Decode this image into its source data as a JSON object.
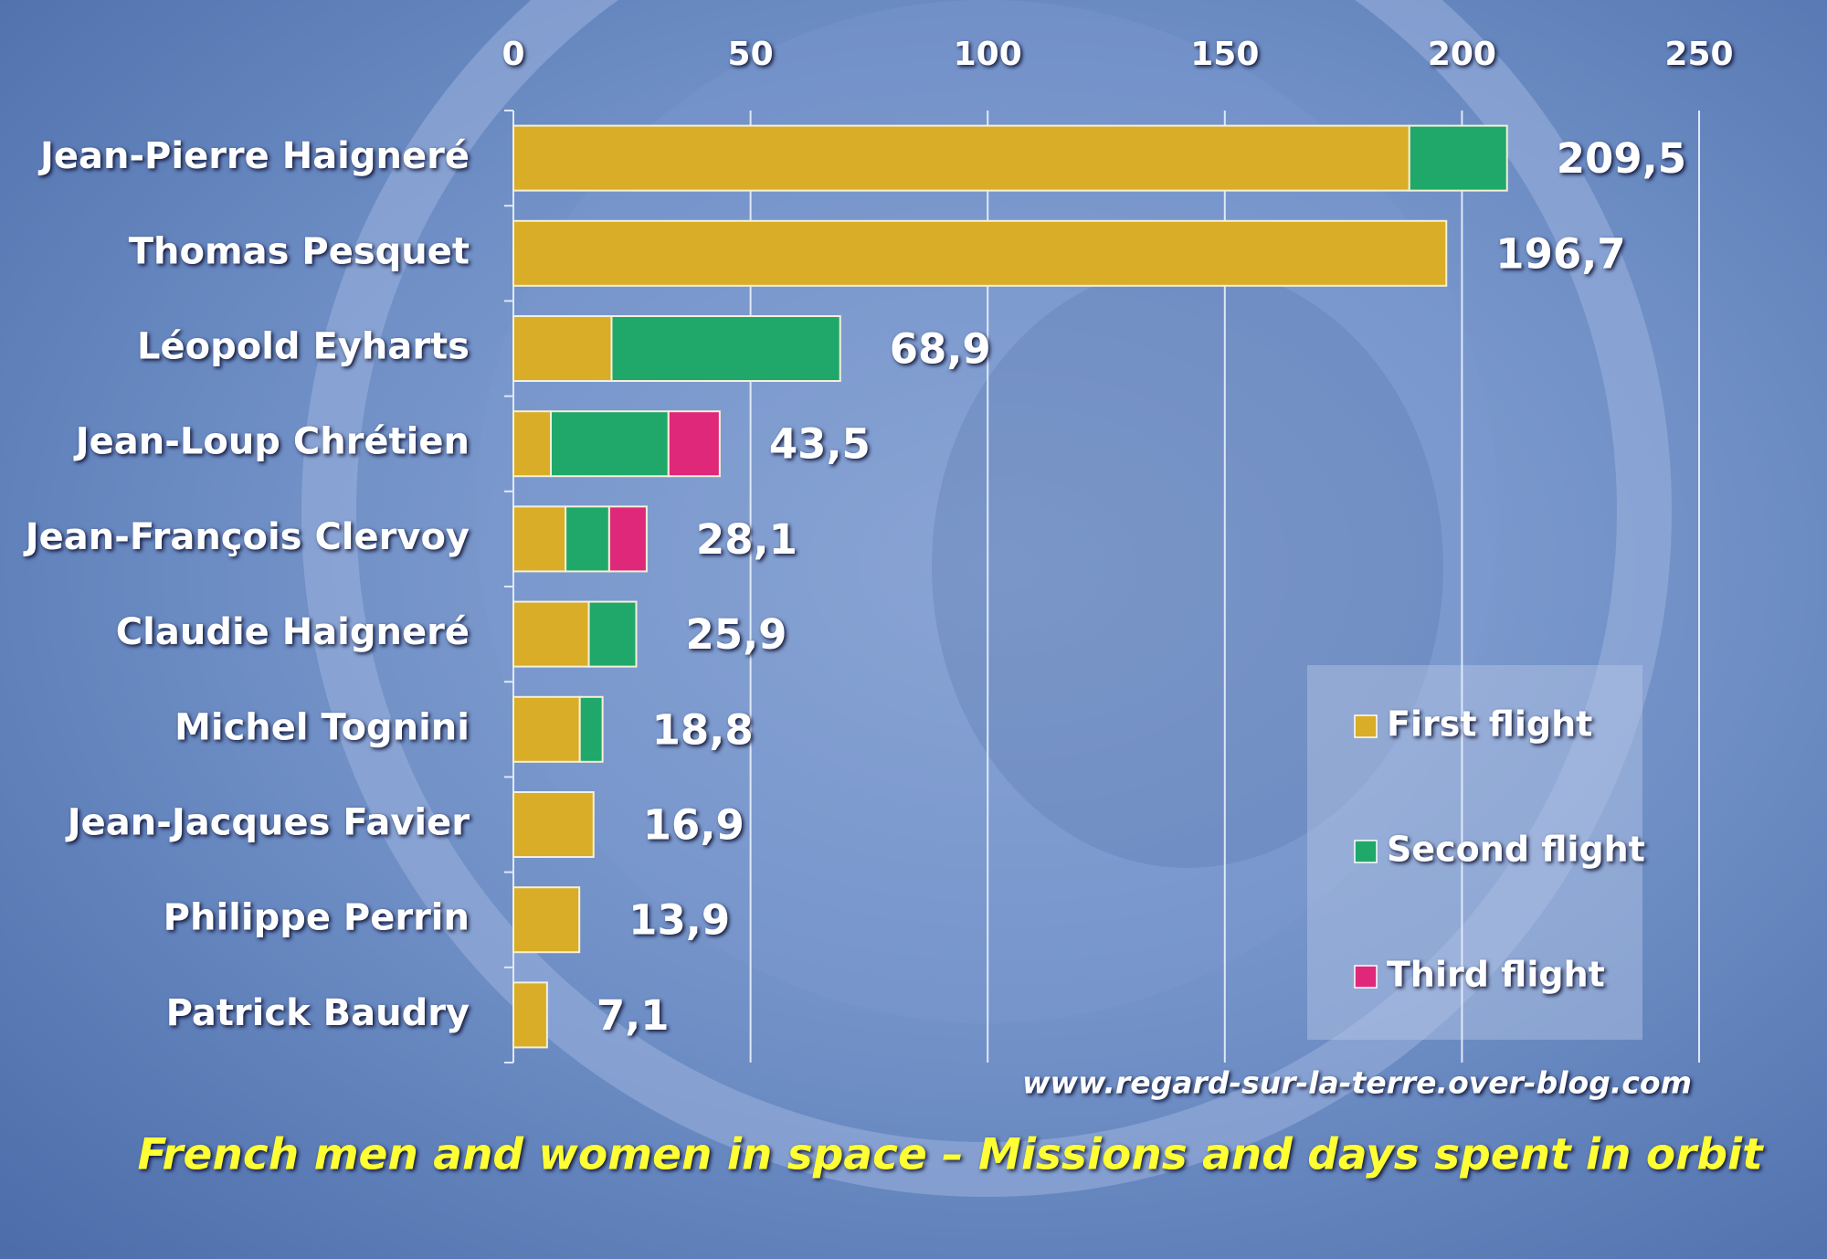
{
  "chart_data": {
    "type": "stacked-bar-horizontal",
    "title": "French men and women in space – Missions and days spent in orbit",
    "source": "www.regard-sur-la-terre.over-blog.com",
    "categories": [
      "Jean-Pierre Haigneré",
      "Thomas Pesquet",
      "Léopold Eyharts",
      "Jean-Loup Chrétien",
      "Jean-François Clervoy",
      "Claudie Haigneré",
      "Michel Tognini",
      "Jean-Jacques Favier",
      "Philippe Perrin",
      "Patrick Baudry"
    ],
    "series": [
      {
        "name": "First flight",
        "color": "#d9ad28",
        "values": [
          188.9,
          196.7,
          20.7,
          7.9,
          11.0,
          15.9,
          14.0,
          16.9,
          13.9,
          7.1
        ]
      },
      {
        "name": "Second flight",
        "color": "#1fa86a",
        "values": [
          20.6,
          null,
          48.2,
          24.8,
          9.2,
          10.0,
          4.8,
          null,
          null,
          null
        ]
      },
      {
        "name": "Third flight",
        "color": "#e0287a",
        "values": [
          null,
          null,
          null,
          10.8,
          7.9,
          null,
          null,
          null,
          null,
          null
        ]
      }
    ],
    "totals": [
      209.5,
      196.7,
      68.9,
      43.5,
      28.1,
      25.9,
      18.8,
      16.9,
      13.9,
      7.1
    ],
    "total_labels": [
      "209,5",
      "196,7",
      "68,9",
      "43,5",
      "28,1",
      "25,9",
      "18,8",
      "16,9",
      "13,9",
      "7,1"
    ],
    "xlim": [
      0,
      250
    ],
    "xticks": [
      0,
      50,
      100,
      150,
      200,
      250
    ],
    "grid": true,
    "legend": "bottom-right"
  }
}
